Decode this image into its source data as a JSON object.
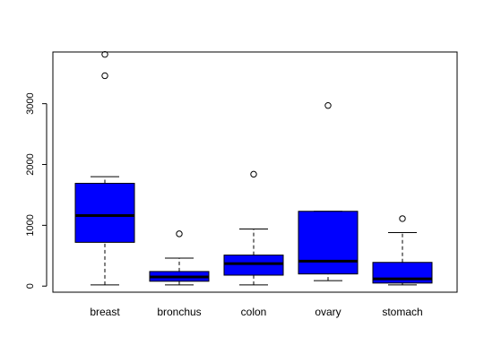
{
  "chart_data": {
    "type": "box",
    "title": "",
    "xlabel": "",
    "ylabel": "",
    "ylim": [
      -100,
      3850
    ],
    "yticks": [
      0,
      1000,
      2000,
      3000
    ],
    "ytick_labels": [
      "0",
      "1000",
      "2000",
      "3000"
    ],
    "grid": false,
    "box_color": "#0000ff",
    "categories": [
      "breast",
      "bronchus",
      "colon",
      "ovary",
      "stomach"
    ],
    "boxes": [
      {
        "label": "breast",
        "whisker_low": 20,
        "q1": 720,
        "median": 1160,
        "q3": 1690,
        "whisker_high": 1800,
        "outliers": [
          3460,
          3810
        ]
      },
      {
        "label": "bronchus",
        "whisker_low": 20,
        "q1": 80,
        "median": 150,
        "q3": 240,
        "whisker_high": 460,
        "outliers": [
          860
        ]
      },
      {
        "label": "colon",
        "whisker_low": 20,
        "q1": 180,
        "median": 370,
        "q3": 510,
        "whisker_high": 940,
        "outliers": [
          1840
        ]
      },
      {
        "label": "ovary",
        "whisker_low": 90,
        "q1": 200,
        "median": 410,
        "q3": 1230,
        "whisker_high": 1230,
        "outliers": [
          2970
        ]
      },
      {
        "label": "stomach",
        "whisker_low": 20,
        "q1": 50,
        "median": 120,
        "q3": 390,
        "whisker_high": 880,
        "outliers": [
          1110
        ]
      }
    ]
  }
}
